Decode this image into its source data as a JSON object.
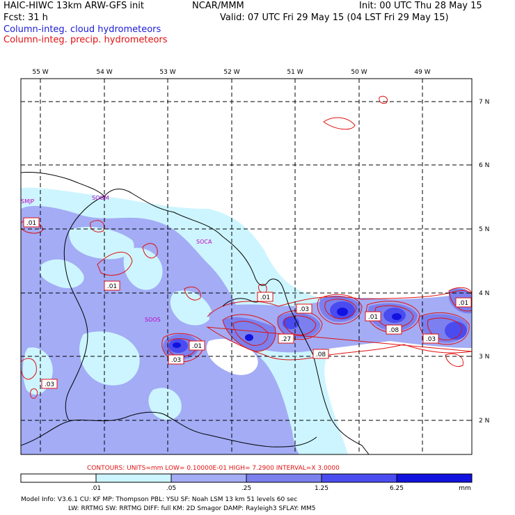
{
  "header": {
    "model": "HAIC-HIWC 13km ARW-GFS init",
    "org": "NCAR/MMM",
    "init": "Init: 00 UTC Thu 28 May 15",
    "fcst": "Fcst:    31 h",
    "valid": "Valid: 07 UTC Fri 29 May 15 (04 LST Fri 29 May 15)",
    "field1": "Column-integ. cloud hydrometeors",
    "field2": "Column-integ. precip. hydrometeors",
    "field1_color": "#1a1ad6",
    "field2_color": "#e01010"
  },
  "axes": {
    "lon_labels": [
      "55 W",
      "54 W",
      "53 W",
      "52 W",
      "51 W",
      "50 W",
      "49 W"
    ],
    "lat_labels": [
      "7 N",
      "6 N",
      "5 N",
      "4 N",
      "3 N",
      "2 N"
    ]
  },
  "stations": [
    "SMJP",
    "SOGM",
    "SOCA",
    "SOOS"
  ],
  "contour_labels": [
    ".01",
    ".01",
    ".01",
    ".03",
    ".01",
    ".27",
    ".03",
    ".08",
    ".01",
    ".08",
    ".03",
    ".03",
    ".01"
  ],
  "contours_line": "CONTOURS:  UNITS=mm   LOW= 0.10000E-01   HIGH=  7.2900      INTERVAL=X  3.0000",
  "colorbar": {
    "ticks": [
      ".01",
      ".05",
      ".25",
      "1.25",
      "6.25"
    ],
    "unit": "mm",
    "colors": [
      "#ffffff",
      "#cdf5ff",
      "#a3acf5",
      "#7b80ee",
      "#4a4cf0",
      "#1212e0"
    ]
  },
  "model_info": {
    "line1": "Model Info: V3.6.1    CU: KF      MP: Thompson     PBL: YSU       SF: Noah LSM     13 km    51 levels   60 sec",
    "line2": "LW: RRTMG    SW: RRTMG   DIFF: full    KM: 2D Smagor DAMP: Rayleigh3   SFLAY: MM5"
  }
}
